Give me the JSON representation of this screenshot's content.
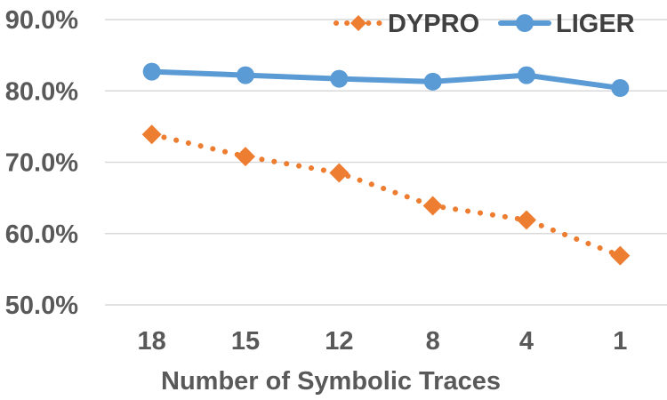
{
  "chart_data": {
    "type": "line",
    "title": "",
    "xlabel": "Number of Symbolic Traces",
    "ylabel": "",
    "categories": [
      "18",
      "15",
      "12",
      "8",
      "4",
      "1"
    ],
    "y_ticks": [
      "50.0%",
      "60.0%",
      "70.0%",
      "80.0%",
      "90.0%"
    ],
    "ylim": [
      50,
      90
    ],
    "grid": true,
    "legend_position": "top-right",
    "series": [
      {
        "name": "DYPRO",
        "values": [
          73.9,
          70.8,
          68.5,
          63.9,
          61.9,
          56.9
        ],
        "color": "#ED7D31",
        "line_style": "dotted",
        "marker": "diamond"
      },
      {
        "name": "LIGER",
        "values": [
          82.7,
          82.2,
          81.7,
          81.3,
          82.2,
          80.4
        ],
        "color": "#5B9BD5",
        "line_style": "solid",
        "marker": "circle"
      }
    ]
  }
}
